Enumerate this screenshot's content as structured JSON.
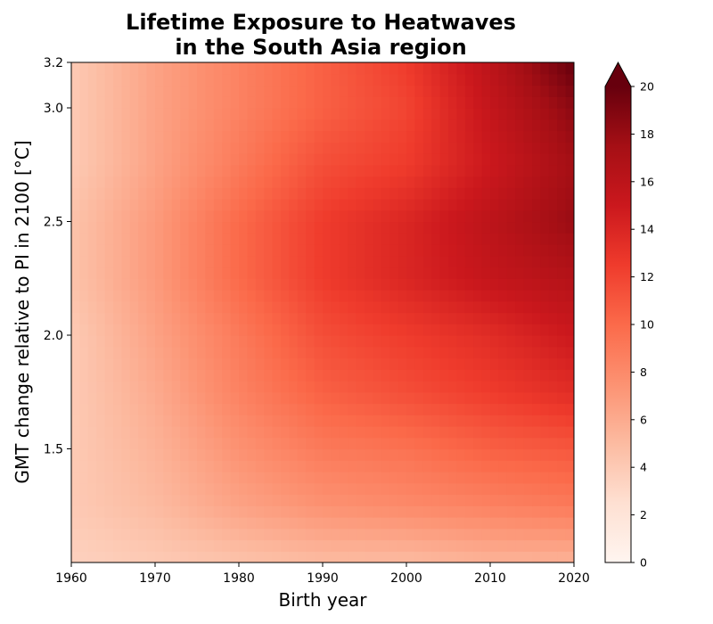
{
  "chart_data": {
    "type": "heatmap",
    "title_line1": "Lifetime Exposure to Heatwaves",
    "title_line2": "in the South Asia region",
    "xlabel": "Birth year",
    "ylabel": "GMT change relative to PI in 2100 [°C]",
    "xlim": [
      1960,
      2020
    ],
    "ylim": [
      1.0,
      3.2
    ],
    "x_ticks": [
      1960,
      1970,
      1980,
      1990,
      2000,
      2010,
      2020
    ],
    "x_tick_labels": [
      "1960",
      "1970",
      "1980",
      "1990",
      "2000",
      "2010",
      "2020"
    ],
    "y_ticks": [
      1.5,
      2.0,
      2.5,
      3.0,
      3.2
    ],
    "y_tick_labels": [
      "1.5",
      "2.0",
      "2.5",
      "3.0",
      "3.2"
    ],
    "colormap": "Reds",
    "colorbar": {
      "min": 0,
      "max": 20,
      "extend": "max",
      "ticks": [
        0,
        2,
        4,
        6,
        8,
        10,
        12,
        14,
        16,
        18,
        20
      ],
      "tick_labels": [
        "0",
        "2",
        "4",
        "6",
        "8",
        "10",
        "12",
        "14",
        "16",
        "18",
        "20"
      ]
    },
    "x": [
      1960,
      1970,
      1980,
      1990,
      2000,
      2010,
      2020
    ],
    "y": [
      1.0,
      1.25,
      1.5,
      1.75,
      2.0,
      2.25,
      2.5,
      2.75,
      3.0,
      3.2
    ],
    "z": [
      [
        3.5,
        4.0,
        4.5,
        5.0,
        5.0,
        5.5,
        5.5
      ],
      [
        4.0,
        5.0,
        6.5,
        7.5,
        8.0,
        8.5,
        9.0
      ],
      [
        4.0,
        5.5,
        7.5,
        9.0,
        9.5,
        10.5,
        11.0
      ],
      [
        4.0,
        6.0,
        8.5,
        10.5,
        11.5,
        12.5,
        13.5
      ],
      [
        4.0,
        6.5,
        9.0,
        11.5,
        12.5,
        13.5,
        15.0
      ],
      [
        4.5,
        7.0,
        10.0,
        12.5,
        14.0,
        15.5,
        16.5
      ],
      [
        4.5,
        7.0,
        10.0,
        12.5,
        14.0,
        16.0,
        18.0
      ],
      [
        4.0,
        6.5,
        9.0,
        11.5,
        12.5,
        15.0,
        17.5
      ],
      [
        4.0,
        6.5,
        8.5,
        10.5,
        12.0,
        15.5,
        18.5
      ],
      [
        4.0,
        6.5,
        8.5,
        10.5,
        12.5,
        16.0,
        20.0
      ]
    ]
  }
}
